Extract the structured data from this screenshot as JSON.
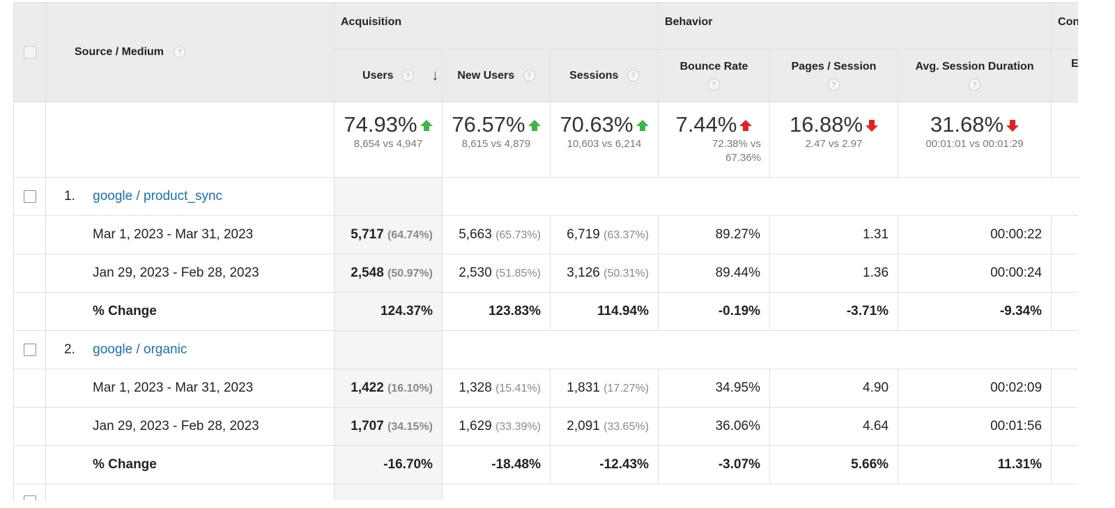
{
  "headers": {
    "source_medium": "Source / Medium",
    "groups": [
      "Acquisition",
      "Behavior",
      "Con"
    ],
    "columns": [
      "Users",
      "New Users",
      "Sessions",
      "Bounce Rate",
      "Pages / Session",
      "Avg. Session Duration",
      "E"
    ]
  },
  "summary": [
    {
      "pct": "74.93%",
      "dir": "up-green",
      "detail": "8,654 vs 4,947"
    },
    {
      "pct": "76.57%",
      "dir": "up-green",
      "detail": "8,615 vs 4,879"
    },
    {
      "pct": "70.63%",
      "dir": "up-green",
      "detail": "10,603 vs 6,214"
    },
    {
      "pct": "7.44%",
      "dir": "up-red",
      "detail": "72.38% vs 67.36%"
    },
    {
      "pct": "16.88%",
      "dir": "down-red",
      "detail": "2.47 vs 2.97"
    },
    {
      "pct": "31.68%",
      "dir": "down-red",
      "detail": "00:01:01 vs 00:01:29"
    }
  ],
  "groups": [
    {
      "index": "1.",
      "source": "google / product_sync",
      "rows": [
        {
          "label": "Mar 1, 2023 - Mar 31, 2023",
          "users": "5,717",
          "users_pct": "(64.74%)",
          "new_users": "5,663",
          "new_users_pct": "(65.73%)",
          "sessions": "6,719",
          "sessions_pct": "(63.37%)",
          "bounce": "89.27%",
          "pages": "1.31",
          "duration": "00:00:22"
        },
        {
          "label": "Jan 29, 2023 - Feb 28, 2023",
          "users": "2,548",
          "users_pct": "(50.97%)",
          "new_users": "2,530",
          "new_users_pct": "(51.85%)",
          "sessions": "3,126",
          "sessions_pct": "(50.31%)",
          "bounce": "89.44%",
          "pages": "1.36",
          "duration": "00:00:24"
        }
      ],
      "change": {
        "label": "% Change",
        "users": "124.37%",
        "new_users": "123.83%",
        "sessions": "114.94%",
        "bounce": "-0.19%",
        "pages": "-3.71%",
        "duration": "-9.34%"
      }
    },
    {
      "index": "2.",
      "source": "google / organic",
      "rows": [
        {
          "label": "Mar 1, 2023 - Mar 31, 2023",
          "users": "1,422",
          "users_pct": "(16.10%)",
          "new_users": "1,328",
          "new_users_pct": "(15.41%)",
          "sessions": "1,831",
          "sessions_pct": "(17.27%)",
          "bounce": "34.95%",
          "pages": "4.90",
          "duration": "00:02:09"
        },
        {
          "label": "Jan 29, 2023 - Feb 28, 2023",
          "users": "1,707",
          "users_pct": "(34.15%)",
          "new_users": "1,629",
          "new_users_pct": "(33.39%)",
          "sessions": "2,091",
          "sessions_pct": "(33.65%)",
          "bounce": "36.06%",
          "pages": "4.64",
          "duration": "00:01:56"
        }
      ],
      "change": {
        "label": "% Change",
        "users": "-16.70%",
        "new_users": "-18.48%",
        "sessions": "-12.43%",
        "bounce": "-3.07%",
        "pages": "5.66%",
        "duration": "11.31%"
      }
    }
  ],
  "colors": {
    "link": "#1a6eb4",
    "up": "#3cb54a",
    "down": "#e02227",
    "header_bg": "#ececec"
  }
}
